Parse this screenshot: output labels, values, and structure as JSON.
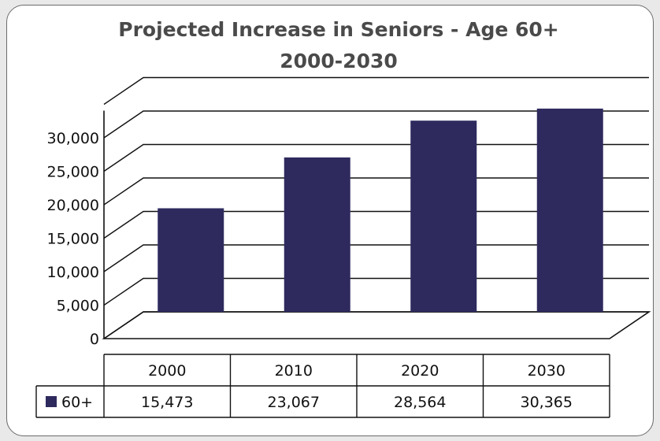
{
  "chart_data": {
    "type": "bar",
    "title": "Projected Increase in Seniors - Age 60+",
    "subtitle": "2000-2030",
    "categories": [
      "2000",
      "2010",
      "2020",
      "2030"
    ],
    "series": [
      {
        "name": "60+",
        "values": [
          15473,
          23067,
          28564,
          30365
        ],
        "color": "#2e2a5e"
      }
    ],
    "y_ticks": [
      "0",
      "5,000",
      "10,000",
      "15,000",
      "20,000",
      "25,000",
      "30,000"
    ],
    "data_labels": [
      "15,473",
      "23,067",
      "28,564",
      "30,365"
    ],
    "ylim": [
      0,
      30000
    ],
    "grid": true,
    "data_table": true,
    "legend": "data-table"
  }
}
